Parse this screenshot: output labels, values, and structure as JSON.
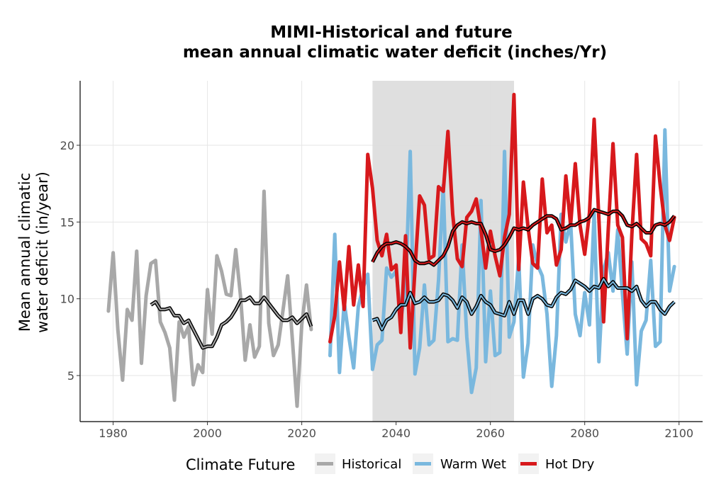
{
  "chart_data": {
    "type": "line",
    "title_line1": "MIMI-Historical and future",
    "title_line2": "mean annual climatic water deficit (inches/Yr)",
    "ylabel_line1": "Mean annual climatic",
    "ylabel_line2": "water deficit (in/year)",
    "xlabel": "",
    "xlim": [
      1973,
      2105
    ],
    "ylim": [
      2,
      24.2
    ],
    "xticks": [
      1980,
      2000,
      2020,
      2040,
      2060,
      2080,
      2100
    ],
    "yticks": [
      5,
      10,
      15,
      20
    ],
    "grid": true,
    "shaded_period": [
      2035,
      2065
    ],
    "legend": {
      "title": "Climate Future",
      "position": "bottom",
      "entries": [
        "Historical",
        "Warm Wet",
        "Hot Dry"
      ]
    },
    "colors": {
      "Historical": "#a8a8a8",
      "Warm Wet": "#7ab8de",
      "Hot Dry": "#d7191c",
      "shade": "#dcdcdc",
      "grid": "#e6e6e6",
      "rolling_mean": "#000000"
    },
    "series": [
      {
        "name": "Historical",
        "x": [
          1979,
          1980,
          1981,
          1982,
          1983,
          1984,
          1985,
          1986,
          1987,
          1988,
          1989,
          1990,
          1991,
          1992,
          1993,
          1994,
          1995,
          1996,
          1997,
          1998,
          1999,
          2000,
          2001,
          2002,
          2003,
          2004,
          2005,
          2006,
          2007,
          2008,
          2009,
          2010,
          2011,
          2012,
          2013,
          2014,
          2015,
          2016,
          2017,
          2018,
          2019,
          2020,
          2021,
          2022
        ],
        "y": [
          9.2,
          13.0,
          8.0,
          4.7,
          9.3,
          8.6,
          13.1,
          5.8,
          10.2,
          12.3,
          12.5,
          8.5,
          7.8,
          6.8,
          3.4,
          8.5,
          7.5,
          8.2,
          4.4,
          5.7,
          5.2,
          10.6,
          7.7,
          12.8,
          11.8,
          10.3,
          10.2,
          13.2,
          10.2,
          6.0,
          8.3,
          6.2,
          6.9,
          17.0,
          8.4,
          6.3,
          7.0,
          9.2,
          11.5,
          7.4,
          3.0,
          8.3,
          10.9,
          8.0
        ]
      },
      {
        "name": "Warm Wet",
        "x": [
          2026,
          2027,
          2028,
          2029,
          2030,
          2031,
          2032,
          2033,
          2034,
          2035,
          2036,
          2037,
          2038,
          2039,
          2040,
          2041,
          2042,
          2043,
          2044,
          2045,
          2046,
          2047,
          2048,
          2049,
          2050,
          2051,
          2052,
          2053,
          2054,
          2055,
          2056,
          2057,
          2058,
          2059,
          2060,
          2061,
          2062,
          2063,
          2064,
          2065,
          2066,
          2067,
          2068,
          2069,
          2070,
          2071,
          2072,
          2073,
          2074,
          2075,
          2076,
          2077,
          2078,
          2079,
          2080,
          2081,
          2082,
          2083,
          2084,
          2085,
          2086,
          2087,
          2088,
          2089,
          2090,
          2091,
          2092,
          2093,
          2094,
          2095,
          2096,
          2097,
          2098,
          2099
        ],
        "y": [
          6.3,
          14.2,
          5.2,
          9.8,
          7.5,
          5.5,
          9.5,
          10.7,
          11.6,
          5.4,
          7.0,
          7.3,
          12.0,
          11.4,
          11.8,
          8.7,
          10.5,
          19.6,
          5.1,
          6.8,
          10.9,
          7.0,
          7.3,
          11.2,
          17.4,
          7.2,
          7.4,
          7.3,
          13.5,
          7.5,
          3.9,
          5.5,
          16.4,
          5.9,
          10.5,
          6.3,
          6.5,
          19.6,
          7.5,
          8.5,
          12.7,
          4.9,
          7.1,
          13.5,
          12.2,
          11.5,
          9.0,
          4.3,
          7.6,
          15.5,
          13.7,
          15.0,
          9.0,
          7.6,
          10.4,
          8.3,
          15.6,
          5.9,
          11.9,
          13.0,
          10.5,
          14.5,
          10.3,
          6.4,
          12.4,
          4.4,
          7.9,
          8.6,
          12.5,
          6.9,
          7.2,
          21.0,
          10.5,
          12.1
        ]
      },
      {
        "name": "Hot Dry",
        "x": [
          2026,
          2027,
          2028,
          2029,
          2030,
          2031,
          2032,
          2033,
          2034,
          2035,
          2036,
          2037,
          2038,
          2039,
          2040,
          2041,
          2042,
          2043,
          2044,
          2045,
          2046,
          2047,
          2048,
          2049,
          2050,
          2051,
          2052,
          2053,
          2054,
          2055,
          2056,
          2057,
          2058,
          2059,
          2060,
          2061,
          2062,
          2063,
          2064,
          2065,
          2066,
          2067,
          2068,
          2069,
          2070,
          2071,
          2072,
          2073,
          2074,
          2075,
          2076,
          2077,
          2078,
          2079,
          2080,
          2081,
          2082,
          2083,
          2084,
          2085,
          2086,
          2087,
          2088,
          2089,
          2090,
          2091,
          2092,
          2093,
          2094,
          2095,
          2096,
          2097,
          2098,
          2099
        ],
        "y": [
          7.2,
          8.9,
          12.4,
          9.3,
          13.4,
          9.6,
          12.2,
          9.5,
          19.4,
          17.2,
          13.8,
          12.8,
          14.2,
          11.9,
          12.2,
          7.8,
          14.1,
          6.8,
          11.9,
          16.7,
          16.1,
          12.6,
          12.8,
          17.3,
          17.0,
          20.9,
          15.5,
          12.6,
          12.1,
          15.3,
          15.7,
          16.5,
          14.5,
          12.0,
          14.4,
          12.8,
          11.5,
          14.0,
          15.5,
          23.3,
          11.9,
          17.6,
          14.6,
          12.3,
          12.0,
          17.8,
          14.3,
          14.8,
          12.2,
          13.2,
          18.0,
          14.8,
          18.8,
          14.8,
          12.9,
          15.6,
          21.7,
          15.2,
          8.5,
          14.6,
          20.1,
          14.8,
          14.0,
          7.4,
          14.2,
          19.4,
          13.9,
          13.6,
          12.8,
          20.6,
          17.4,
          14.8,
          13.8,
          15.3
        ]
      },
      {
        "name": "Historical rolling mean",
        "x": [
          1988,
          1989,
          1990,
          1991,
          1992,
          1993,
          1994,
          1995,
          1996,
          1997,
          1998,
          1999,
          2000,
          2001,
          2002,
          2003,
          2004,
          2005,
          2006,
          2007,
          2008,
          2009,
          2010,
          2011,
          2012,
          2013,
          2014,
          2015,
          2016,
          2017,
          2018,
          2019,
          2020,
          2021,
          2022
        ],
        "y": [
          9.6,
          9.8,
          9.3,
          9.3,
          9.4,
          8.9,
          8.9,
          8.4,
          8.6,
          8.0,
          7.4,
          6.8,
          6.9,
          6.9,
          7.5,
          8.3,
          8.5,
          8.8,
          9.3,
          9.9,
          9.9,
          10.1,
          9.7,
          9.7,
          10.1,
          9.7,
          9.3,
          8.9,
          8.6,
          8.6,
          8.8,
          8.4,
          8.7,
          9.0,
          8.2
        ]
      },
      {
        "name": "Warm Wet rolling mean",
        "x": [
          2035,
          2036,
          2037,
          2038,
          2039,
          2040,
          2041,
          2042,
          2043,
          2044,
          2045,
          2046,
          2047,
          2048,
          2049,
          2050,
          2051,
          2052,
          2053,
          2054,
          2055,
          2056,
          2057,
          2058,
          2059,
          2060,
          2061,
          2062,
          2063,
          2064,
          2065,
          2066,
          2067,
          2068,
          2069,
          2070,
          2071,
          2072,
          2073,
          2074,
          2075,
          2076,
          2077,
          2078,
          2079,
          2080,
          2081,
          2082,
          2083,
          2084,
          2085,
          2086,
          2087,
          2088,
          2089,
          2090,
          2091,
          2092,
          2093,
          2094,
          2095,
          2096,
          2097,
          2098,
          2099
        ],
        "y": [
          8.6,
          8.7,
          8.0,
          8.6,
          8.8,
          9.3,
          9.6,
          9.6,
          10.4,
          9.7,
          9.8,
          10.1,
          9.8,
          9.8,
          9.9,
          10.3,
          10.2,
          9.9,
          9.4,
          10.1,
          9.8,
          9.0,
          9.5,
          10.2,
          9.8,
          9.6,
          9.1,
          9.0,
          8.9,
          9.8,
          9.0,
          9.9,
          9.9,
          9.0,
          10.0,
          10.2,
          10.0,
          9.6,
          9.5,
          10.1,
          10.4,
          10.3,
          10.6,
          11.2,
          11.0,
          10.8,
          10.5,
          10.8,
          10.7,
          11.3,
          10.8,
          11.1,
          10.7,
          10.7,
          10.7,
          10.5,
          10.8,
          9.9,
          9.5,
          9.8,
          9.8,
          9.3,
          9.0,
          9.5,
          9.8
        ]
      },
      {
        "name": "Hot Dry rolling mean",
        "x": [
          2035,
          2036,
          2037,
          2038,
          2039,
          2040,
          2041,
          2042,
          2043,
          2044,
          2045,
          2046,
          2047,
          2048,
          2049,
          2050,
          2051,
          2052,
          2053,
          2054,
          2055,
          2056,
          2057,
          2058,
          2059,
          2060,
          2061,
          2062,
          2063,
          2064,
          2065,
          2066,
          2067,
          2068,
          2069,
          2070,
          2071,
          2072,
          2073,
          2074,
          2075,
          2076,
          2077,
          2078,
          2079,
          2080,
          2081,
          2082,
          2083,
          2084,
          2085,
          2086,
          2087,
          2088,
          2089,
          2090,
          2091,
          2092,
          2093,
          2094,
          2095,
          2096,
          2097,
          2098,
          2099
        ],
        "y": [
          12.4,
          13.0,
          13.4,
          13.6,
          13.6,
          13.7,
          13.6,
          13.4,
          13.1,
          12.5,
          12.3,
          12.3,
          12.4,
          12.2,
          12.5,
          12.8,
          13.4,
          14.4,
          14.8,
          15.0,
          14.9,
          15.0,
          14.9,
          14.9,
          14.2,
          13.2,
          13.1,
          13.2,
          13.5,
          14.0,
          14.6,
          14.5,
          14.6,
          14.5,
          14.8,
          15.0,
          15.2,
          15.4,
          15.4,
          15.2,
          14.5,
          14.6,
          14.8,
          14.8,
          15.0,
          15.1,
          15.3,
          15.8,
          15.7,
          15.6,
          15.5,
          15.7,
          15.7,
          15.4,
          14.8,
          14.7,
          14.9,
          14.6,
          14.3,
          14.3,
          14.8,
          14.9,
          14.8,
          15.0,
          15.4
        ]
      }
    ]
  }
}
